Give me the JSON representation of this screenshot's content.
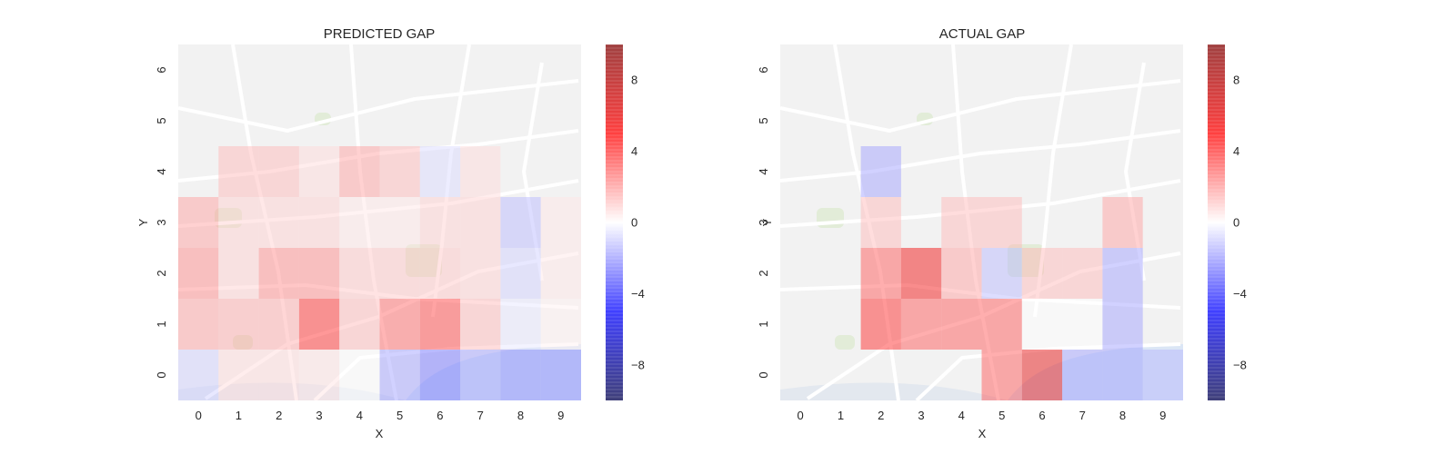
{
  "chart_data": [
    {
      "type": "heatmap",
      "title": "PREDICTED GAP",
      "xlabel": "X",
      "ylabel": "Y",
      "x_categories": [
        "0",
        "1",
        "2",
        "3",
        "4",
        "5",
        "6",
        "7",
        "8",
        "9"
      ],
      "y_categories": [
        "0",
        "1",
        "2",
        "3",
        "4",
        "5",
        "6"
      ],
      "colormap": "seismic",
      "vmin": -10,
      "vmax": 10,
      "colorbar_ticks": [
        "−8",
        "−4",
        "0",
        "4",
        "8"
      ],
      "colorbar_tick_values": [
        -8,
        -4,
        0,
        4,
        8
      ],
      "background": "street map of Porto (partially visible place names: COSTEIRO, PELADA, CAMPINAS, PINHEIRO MANSO, FONTE DA MOURA, LAPA, BOAVISTA, Porto, CEDOFEITA, ARRABIDA, LORDELO DO OURO, MASSARELOS, Estadio do Bessa Seculo XXI, Casa Serralves, Jardim do Palacio de Cristal)",
      "cells": [
        [
          0,
          0,
          -1.0
        ],
        [
          1,
          0,
          0.8
        ],
        [
          2,
          0,
          0.8
        ],
        [
          3,
          0,
          0.6
        ],
        [
          4,
          0,
          0.0
        ],
        [
          5,
          0,
          -2.0
        ],
        [
          6,
          0,
          -3.0
        ],
        [
          7,
          0,
          -2.0
        ],
        [
          8,
          0,
          -2.5
        ],
        [
          9,
          0,
          -2.5
        ],
        [
          0,
          1,
          2.0
        ],
        [
          1,
          1,
          1.8
        ],
        [
          2,
          1,
          1.8
        ],
        [
          3,
          1,
          4.5
        ],
        [
          4,
          1,
          1.5
        ],
        [
          5,
          1,
          3.2
        ],
        [
          6,
          1,
          4.0
        ],
        [
          7,
          1,
          1.5
        ],
        [
          8,
          1,
          -0.5
        ],
        [
          9,
          1,
          0.3
        ],
        [
          0,
          2,
          2.5
        ],
        [
          1,
          2,
          1.0
        ],
        [
          2,
          2,
          2.5
        ],
        [
          3,
          2,
          2.5
        ],
        [
          4,
          2,
          1.2
        ],
        [
          5,
          2,
          1.2
        ],
        [
          6,
          2,
          1.2
        ],
        [
          7,
          2,
          1.0
        ],
        [
          8,
          2,
          -1.0
        ],
        [
          9,
          2,
          0.5
        ],
        [
          0,
          3,
          2.0
        ],
        [
          1,
          3,
          1.0
        ],
        [
          2,
          3,
          1.0
        ],
        [
          3,
          3,
          1.0
        ],
        [
          4,
          3,
          0.5
        ],
        [
          5,
          3,
          0.5
        ],
        [
          6,
          3,
          1.0
        ],
        [
          7,
          3,
          1.0
        ],
        [
          8,
          3,
          -1.5
        ],
        [
          9,
          3,
          0.5
        ],
        [
          1,
          4,
          1.5
        ],
        [
          2,
          4,
          1.5
        ],
        [
          3,
          4,
          0.8
        ],
        [
          4,
          4,
          2.0
        ],
        [
          5,
          4,
          1.5
        ],
        [
          6,
          4,
          -0.8
        ],
        [
          7,
          4,
          0.8
        ]
      ]
    },
    {
      "type": "heatmap",
      "title": "ACTUAL GAP",
      "xlabel": "X",
      "ylabel": "Y",
      "x_categories": [
        "0",
        "1",
        "2",
        "3",
        "4",
        "5",
        "6",
        "7",
        "8",
        "9"
      ],
      "y_categories": [
        "0",
        "1",
        "2",
        "3",
        "4",
        "5",
        "6"
      ],
      "colormap": "seismic",
      "vmin": -10,
      "vmax": 10,
      "colorbar_ticks": [
        "−8",
        "−4",
        "0",
        "4",
        "8"
      ],
      "colorbar_tick_values": [
        -8,
        -4,
        0,
        4,
        8
      ],
      "background": "street map of Porto",
      "cells": [
        [
          5,
          0,
          3.5
        ],
        [
          6,
          0,
          6.0
        ],
        [
          7,
          0,
          -2.0
        ],
        [
          8,
          0,
          -2.0
        ],
        [
          9,
          0,
          -1.5
        ],
        [
          2,
          1,
          4.5
        ],
        [
          3,
          1,
          3.5
        ],
        [
          4,
          1,
          3.5
        ],
        [
          5,
          1,
          3.5
        ],
        [
          6,
          1,
          0.0
        ],
        [
          7,
          1,
          0.0
        ],
        [
          8,
          1,
          -2.0
        ],
        [
          2,
          2,
          3.5
        ],
        [
          3,
          2,
          5.5
        ],
        [
          4,
          2,
          2.0
        ],
        [
          5,
          2,
          -1.5
        ],
        [
          6,
          2,
          1.5
        ],
        [
          7,
          2,
          1.5
        ],
        [
          8,
          2,
          -2.0
        ],
        [
          2,
          3,
          1.5
        ],
        [
          4,
          3,
          1.5
        ],
        [
          5,
          3,
          1.5
        ],
        [
          8,
          3,
          2.0
        ],
        [
          2,
          4,
          -2.0
        ]
      ]
    }
  ]
}
